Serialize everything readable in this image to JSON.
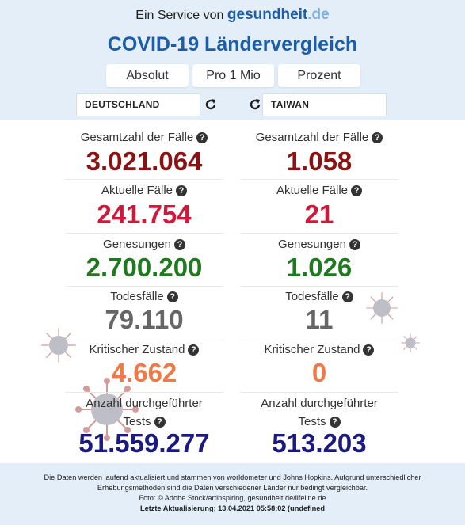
{
  "header": {
    "service_prefix": "Ein Service von",
    "brand_name": "gesundheit",
    "brand_tld": ".de",
    "title": "COVID-19 Ländervergleich"
  },
  "tabs": [
    "Absolut",
    "Pro 1 Mio",
    "Prozent"
  ],
  "selectors": {
    "left": "DEUTSCHLAND",
    "right": "TAIWAN"
  },
  "metrics": [
    {
      "label": "Gesamtzahl der Fälle",
      "left": "3.021.064",
      "right": "1.058",
      "color": "#8b1212"
    },
    {
      "label": "Aktuelle Fälle",
      "left": "241.754",
      "right": "21",
      "color": "#d0183a"
    },
    {
      "label": "Genesungen",
      "left": "2.700.200",
      "right": "1.026",
      "color": "#1f7a1f"
    },
    {
      "label": "Todesfälle",
      "left": "79.110",
      "right": "11",
      "color": "#666666"
    },
    {
      "label": "Kritischer Zustand",
      "left": "4.662",
      "right": "0",
      "color": "#f07a45"
    },
    {
      "label_line1": "Anzahl durchgeführter",
      "label_line2": "Tests",
      "left": "51.559.277",
      "right": "513.203",
      "color": "#1a1a80"
    }
  ],
  "footer": {
    "line1": "Die Daten werden laufend aktualisiert und stammen von worldometer und Johns Hopkins. Aufgrund unterschiedlicher",
    "line2": "Erhebungsmethoden sind die Daten verschiedener Länder nur bedingt vergleichbar.",
    "line3": "Foto: © Adobe Stock/artinspiring, gesundheit.de/lifeline.de",
    "line4": "Letzte Aktualisierung: 13.04.2021 05:58:02 (undefined"
  }
}
